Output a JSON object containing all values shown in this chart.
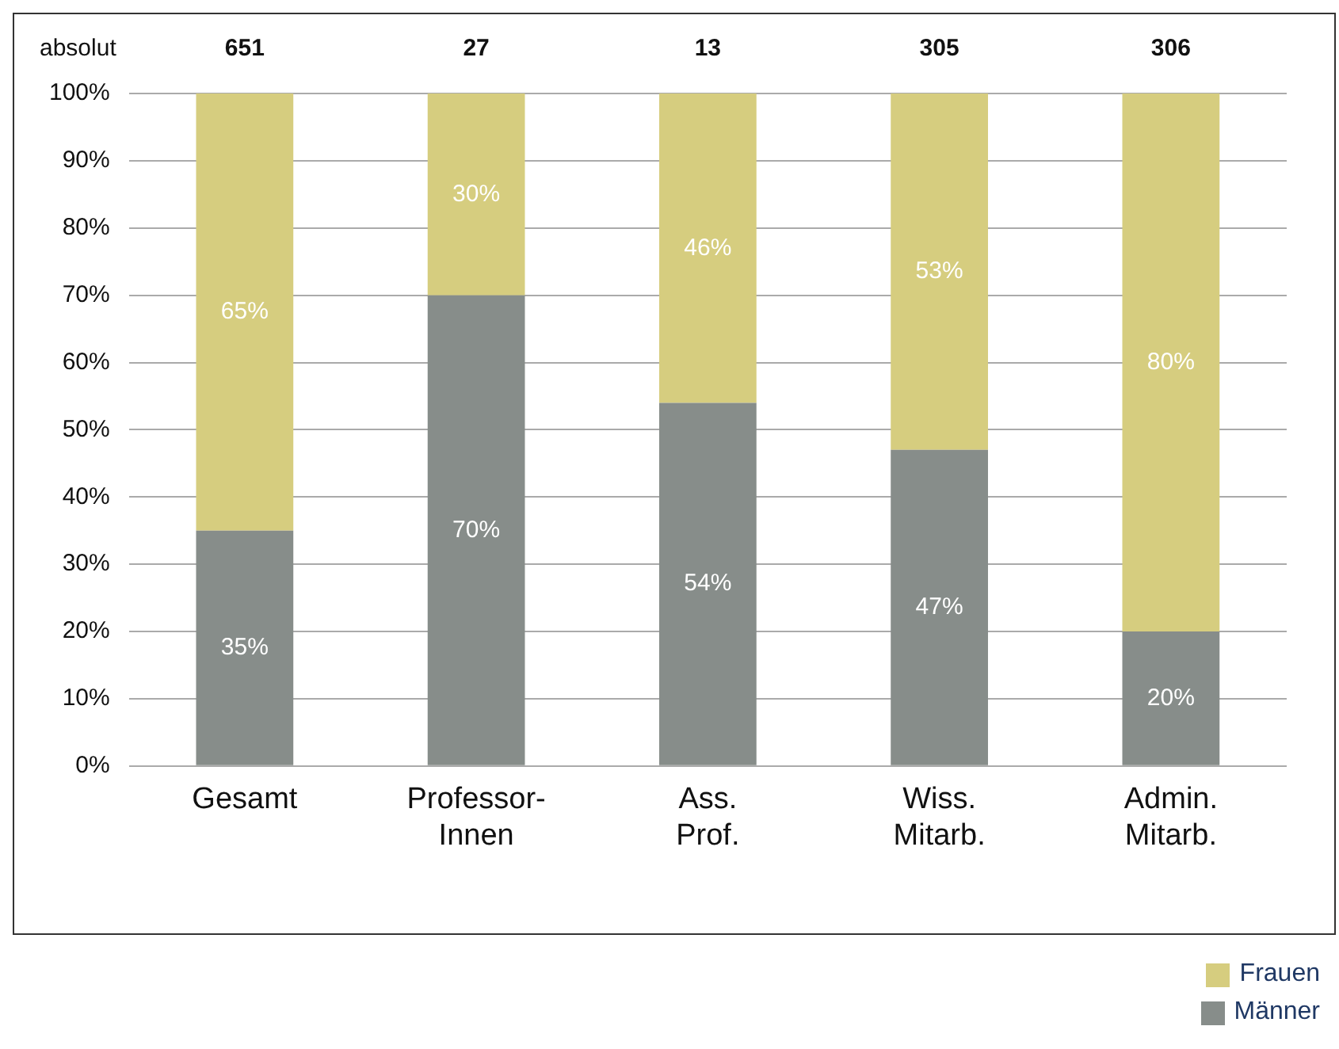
{
  "chart_data": {
    "type": "bar",
    "stacked": true,
    "categories": [
      "Gesamt",
      "Professor-Innen",
      "Ass. Prof.",
      "Wiss. Mitarb.",
      "Admin. Mitarb."
    ],
    "series": [
      {
        "name": "Männer",
        "color": "#878d8a",
        "values": [
          35,
          70,
          54,
          47,
          20
        ],
        "value_labels": [
          "35%",
          "70%",
          "54%",
          "47%",
          "20%"
        ]
      },
      {
        "name": "Frauen",
        "color": "#d6cd7f",
        "values": [
          65,
          30,
          46,
          53,
          80
        ],
        "value_labels": [
          "65%",
          "30%",
          "46%",
          "53%",
          "80%"
        ]
      }
    ],
    "annotations": [
      "absolut",
      "651",
      "27",
      "13",
      "305",
      "306"
    ],
    "ylim": [
      0,
      100
    ],
    "yticks": [
      {
        "value": 0,
        "label": "0%"
      },
      {
        "value": 10,
        "label": "10%"
      },
      {
        "value": 20,
        "label": "20%"
      },
      {
        "value": 30,
        "label": "30%"
      },
      {
        "value": 40,
        "label": "40%"
      },
      {
        "value": 50,
        "label": "50%"
      },
      {
        "value": 60,
        "label": "60%"
      },
      {
        "value": 70,
        "label": "70%"
      },
      {
        "value": 80,
        "label": "80%"
      },
      {
        "value": 90,
        "label": "90%"
      },
      {
        "value": 100,
        "label": "100%"
      }
    ],
    "grid": "y",
    "legend": "bottom right"
  }
}
